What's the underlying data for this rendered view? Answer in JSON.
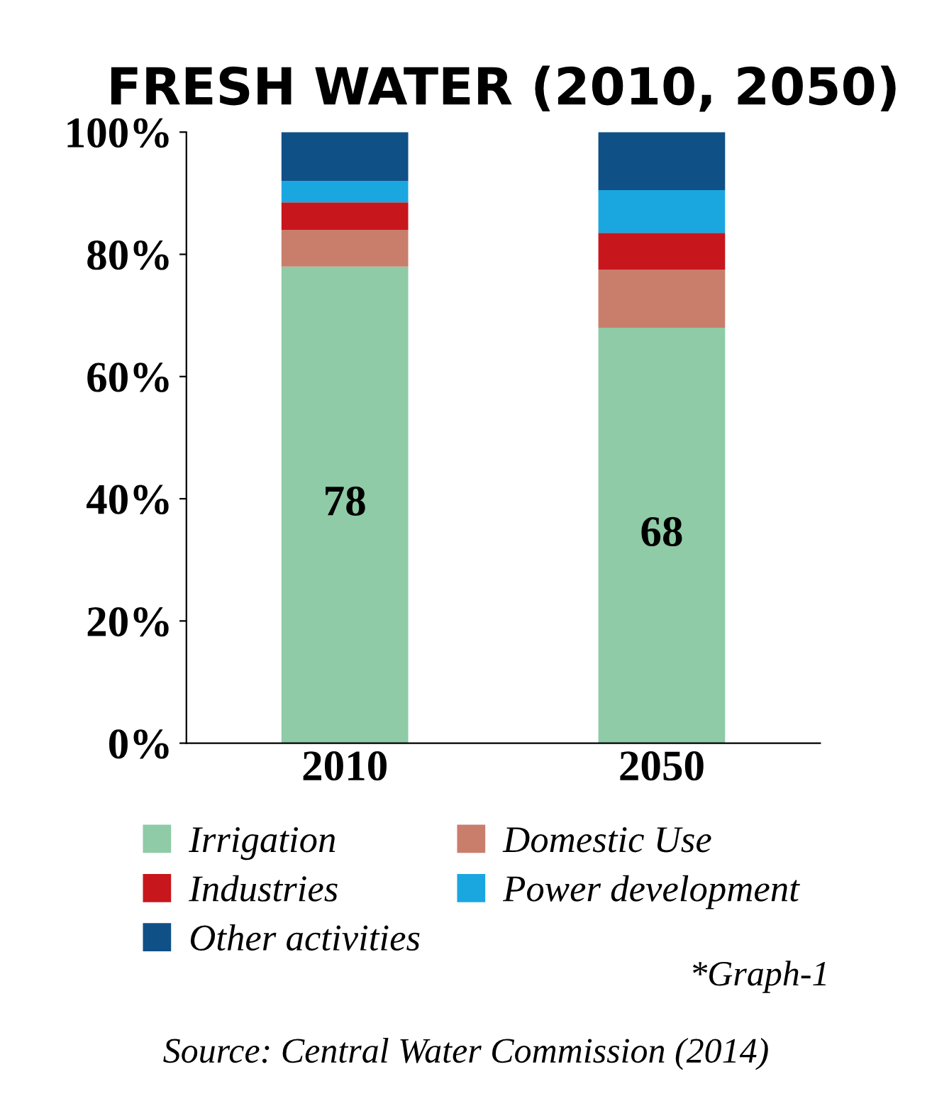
{
  "chart_data": {
    "type": "bar",
    "title": "FRESH WATER (2010, 2050)",
    "categories": [
      "2010",
      "2050"
    ],
    "stacked": true,
    "series": [
      {
        "name": "Irrigation",
        "color": "#8ecba6",
        "values": [
          78,
          68
        ],
        "value_labels": [
          "78",
          "68"
        ]
      },
      {
        "name": "Domestic Use",
        "color": "#c97e6c",
        "values": [
          6,
          9.5
        ]
      },
      {
        "name": "Industries",
        "color": "#c8161d",
        "values": [
          4.5,
          6
        ]
      },
      {
        "name": "Power development",
        "color": "#1aa7e0",
        "values": [
          3.5,
          7
        ]
      },
      {
        "name": "Other activities",
        "color": "#0f5087",
        "values": [
          8,
          9.5
        ]
      }
    ],
    "ylim": [
      0,
      100
    ],
    "yticks": [
      {
        "value": 0,
        "label": "0%"
      },
      {
        "value": 20,
        "label": "20%"
      },
      {
        "value": 40,
        "label": "40%"
      },
      {
        "value": 60,
        "label": "60%"
      },
      {
        "value": 80,
        "label": "80%"
      },
      {
        "value": 100,
        "label": "100%"
      }
    ],
    "grid": false,
    "legend": "bottom",
    "annotations": [
      "*Graph-1",
      "Source: Central Water Commission (2014)"
    ]
  }
}
